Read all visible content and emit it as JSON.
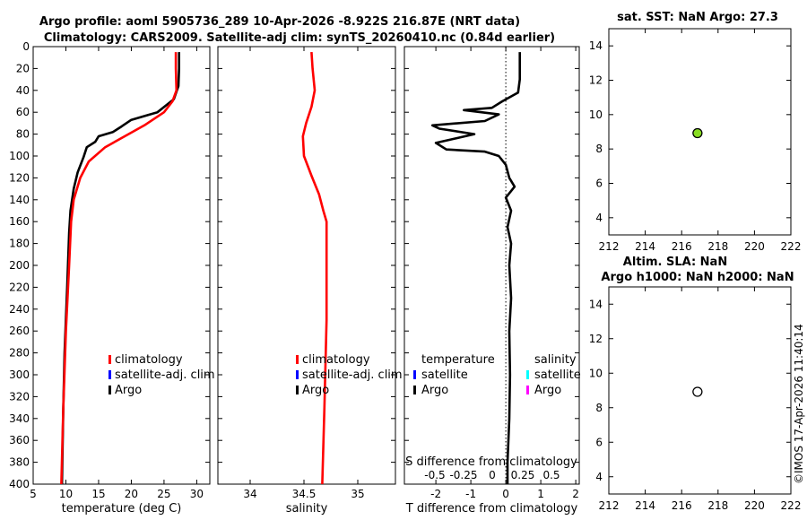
{
  "titles": {
    "line1": "Argo profile: aoml 5905736_289 10-Apr-2026 -8.922S 216.87E (NRT data)",
    "line2": "Climatology: CARS2009. Satellite-adj clim: synTS_20260410.nc (0.84d earlier)",
    "sst": "sat. SST: NaN Argo: 27.3",
    "sla": "Altim. SLA: NaN",
    "h": "Argo h1000: NaN h2000: NaN"
  },
  "watermark": "©IMOS 17-Apr-2026 11:40:14",
  "colors": {
    "climatology": "#ff0000",
    "satellite_adj": "#0000ff",
    "argo": "#000000",
    "sat_temp": "#0000ff",
    "sat_sal": "#00ffff",
    "argo_sal": "#ff00ff",
    "marker_green": "#88dd22"
  },
  "chart_data": [
    {
      "type": "line",
      "name": "temperature",
      "xlabel": "temperature (deg C)",
      "ylabel": "",
      "xlim": [
        5,
        32
      ],
      "ylim": [
        400,
        0
      ],
      "xticks": [
        5,
        10,
        15,
        20,
        25,
        30
      ],
      "yticks": [
        0,
        20,
        40,
        60,
        80,
        100,
        120,
        140,
        160,
        180,
        200,
        220,
        240,
        260,
        280,
        300,
        320,
        340,
        360,
        380,
        400
      ],
      "legend": [
        "climatology",
        "satellite-adj. clim",
        "Argo"
      ],
      "series": [
        {
          "name": "climatology",
          "points": [
            [
              26.8,
              5
            ],
            [
              26.8,
              20
            ],
            [
              26.9,
              40
            ],
            [
              26.3,
              50
            ],
            [
              25,
              60
            ],
            [
              22,
              72
            ],
            [
              19,
              82
            ],
            [
              16,
              92
            ],
            [
              13.5,
              105
            ],
            [
              12.2,
              120
            ],
            [
              11.2,
              140
            ],
            [
              10.8,
              160
            ],
            [
              10.5,
              200
            ],
            [
              10.0,
              260
            ],
            [
              9.6,
              330
            ],
            [
              9.3,
              400
            ]
          ]
        },
        {
          "name": "Argo",
          "points": [
            [
              27.3,
              5
            ],
            [
              27.3,
              20
            ],
            [
              27.2,
              36
            ],
            [
              26.5,
              48
            ],
            [
              24,
              60
            ],
            [
              20,
              67
            ],
            [
              18.5,
              73
            ],
            [
              17.2,
              78
            ],
            [
              15,
              82
            ],
            [
              14.5,
              87
            ],
            [
              13.2,
              92
            ],
            [
              12.7,
              101
            ],
            [
              11.8,
              115
            ],
            [
              11.2,
              130
            ],
            [
              10.7,
              150
            ],
            [
              10.5,
              170
            ],
            [
              10.2,
              220
            ],
            [
              9.8,
              280
            ],
            [
              9.6,
              330
            ],
            [
              9.4,
              400
            ]
          ]
        }
      ]
    },
    {
      "type": "line",
      "name": "salinity",
      "xlabel": "salinity",
      "xlim": [
        33.7,
        35.35
      ],
      "ylim": [
        400,
        0
      ],
      "xticks": [
        34,
        34.5,
        35
      ],
      "legend": [
        "climatology",
        "satellite-adj. clim",
        "Argo"
      ],
      "series": [
        {
          "name": "climatology",
          "points": [
            [
              34.57,
              5
            ],
            [
              34.58,
              20
            ],
            [
              34.6,
              40
            ],
            [
              34.57,
              55
            ],
            [
              34.52,
              70
            ],
            [
              34.49,
              82
            ],
            [
              34.5,
              100
            ],
            [
              34.57,
              118
            ],
            [
              34.64,
              135
            ],
            [
              34.68,
              150
            ],
            [
              34.71,
              160
            ],
            [
              34.71,
              250
            ],
            [
              34.69,
              330
            ],
            [
              34.67,
              400
            ]
          ]
        }
      ]
    },
    {
      "type": "line",
      "name": "difference",
      "xlabel": "T difference from climatology",
      "xlabel_top": "S difference from climatology",
      "xlim": [
        -2.9,
        2.1
      ],
      "ylim": [
        400,
        0
      ],
      "xticks": [
        -2,
        -1,
        0,
        1,
        2
      ],
      "top_tick_labels": [
        "-0.5",
        "-0.25",
        "0",
        "0.25",
        "0.5"
      ],
      "legend_temperature": {
        "title": "temperature",
        "items": [
          "satellite",
          "Argo"
        ]
      },
      "legend_salinity": {
        "title": "salinity",
        "items": [
          "satellite",
          "Argo"
        ]
      },
      "series": [
        {
          "name": "T difference (Argo)",
          "points": [
            [
              0.4,
              5
            ],
            [
              0.4,
              30
            ],
            [
              0.35,
              42
            ],
            [
              -0.1,
              50
            ],
            [
              -0.4,
              56
            ],
            [
              -1.2,
              58
            ],
            [
              -0.2,
              62
            ],
            [
              -0.6,
              68
            ],
            [
              -2.1,
              72
            ],
            [
              -1.9,
              75
            ],
            [
              -0.9,
              80
            ],
            [
              -2.0,
              88
            ],
            [
              -1.7,
              94
            ],
            [
              -0.6,
              96
            ],
            [
              -0.2,
              100
            ],
            [
              0,
              108
            ],
            [
              0.1,
              120
            ],
            [
              0.25,
              128
            ],
            [
              0,
              138
            ],
            [
              0.15,
              150
            ],
            [
              0.05,
              165
            ],
            [
              0.15,
              180
            ],
            [
              0.1,
              200
            ],
            [
              0.15,
              230
            ],
            [
              0.1,
              260
            ],
            [
              0.12,
              300
            ],
            [
              0.1,
              340
            ],
            [
              0.05,
              380
            ],
            [
              0.05,
              400
            ]
          ]
        }
      ]
    },
    {
      "type": "scatter",
      "name": "sst_map",
      "title": "sat. SST: NaN Argo: 27.3",
      "xlim": [
        212,
        222
      ],
      "ylim": [
        3,
        15
      ],
      "xticks": [
        212,
        214,
        216,
        218,
        220,
        222
      ],
      "yticks": [
        4,
        6,
        8,
        10,
        12,
        14
      ],
      "points": [
        {
          "x": 216.87,
          "y": 8.922,
          "fill": "#88dd22"
        }
      ]
    },
    {
      "type": "scatter",
      "name": "sla_map",
      "title": "Altim. SLA: NaN",
      "xlim": [
        212,
        222
      ],
      "ylim": [
        3,
        15
      ],
      "xticks": [
        212,
        214,
        216,
        218,
        220,
        222
      ],
      "yticks": [
        4,
        6,
        8,
        10,
        12,
        14
      ],
      "points": [
        {
          "x": 216.87,
          "y": 8.922,
          "fill": "#ffffff"
        }
      ]
    }
  ]
}
